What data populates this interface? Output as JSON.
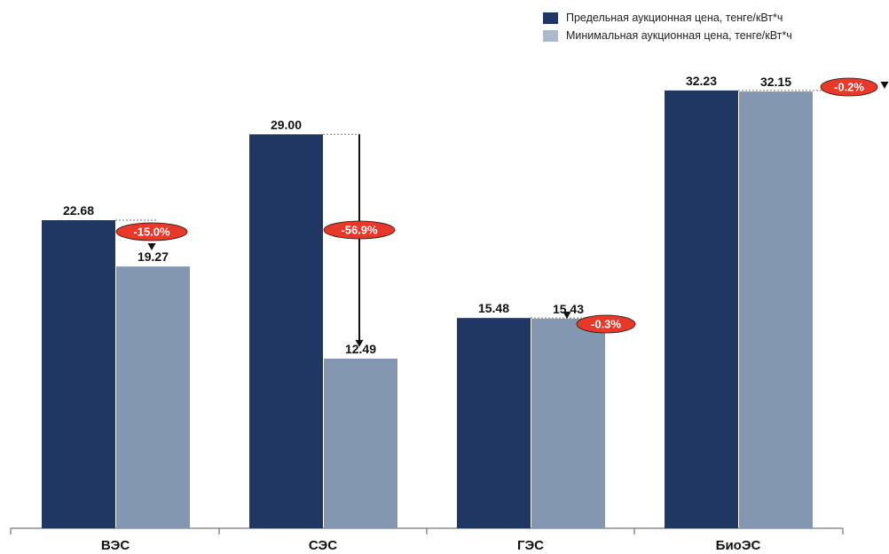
{
  "chart_data": {
    "type": "bar",
    "categories": [
      "ВЭС",
      "СЭС",
      "ГЭС",
      "БиоЭС"
    ],
    "series": [
      {
        "name": "Предельная аукционная цена, тенге/кВт*ч",
        "values": [
          22.68,
          29.0,
          15.48,
          32.23
        ],
        "labels": [
          "22.68",
          "29.00",
          "15.48",
          "32.23"
        ]
      },
      {
        "name": "Минимальная аукционная цена, тенге/кВт*ч",
        "values": [
          19.27,
          12.49,
          15.43,
          32.15
        ],
        "labels": [
          "19.27",
          "12.49",
          "15.43",
          "32.15"
        ]
      }
    ],
    "changes": [
      "-15.0%",
      "-56.9%",
      "-0.3%",
      "-0.2%"
    ],
    "ylim": [
      0,
      36
    ],
    "grid": false,
    "legend": "top-right",
    "title": "",
    "xlabel": "",
    "ylabel": ""
  },
  "colors": {
    "max_price": "#213763",
    "min_price": "#8497b0",
    "badge": "#e8382a",
    "axis": "#555555"
  }
}
